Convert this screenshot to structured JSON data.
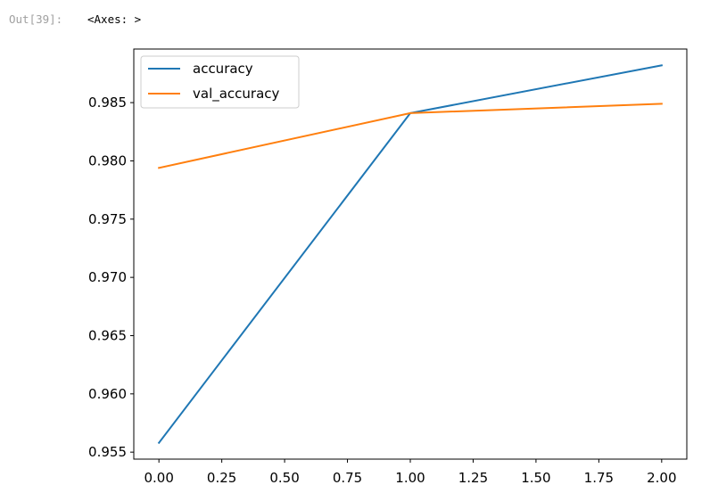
{
  "cell": {
    "prompt": "Out[39]:",
    "output": "<Axes: >"
  },
  "chart_data": {
    "type": "line",
    "x": [
      0,
      1,
      2
    ],
    "series": [
      {
        "name": "accuracy",
        "values": [
          0.9558,
          0.9841,
          0.9882
        ],
        "color": "#1f77b4"
      },
      {
        "name": "val_accuracy",
        "values": [
          0.9794,
          0.9841,
          0.9849
        ],
        "color": "#ff7f0e"
      }
    ],
    "xlim": [
      -0.1,
      2.1
    ],
    "ylim": [
      0.9544,
      0.9896
    ],
    "xticks": [
      {
        "value": 0.0,
        "label": "0.00"
      },
      {
        "value": 0.25,
        "label": "0.25"
      },
      {
        "value": 0.5,
        "label": "0.50"
      },
      {
        "value": 0.75,
        "label": "0.75"
      },
      {
        "value": 1.0,
        "label": "1.00"
      },
      {
        "value": 1.25,
        "label": "1.25"
      },
      {
        "value": 1.5,
        "label": "1.50"
      },
      {
        "value": 1.75,
        "label": "1.75"
      },
      {
        "value": 2.0,
        "label": "2.00"
      }
    ],
    "yticks": [
      {
        "value": 0.955,
        "label": "0.955"
      },
      {
        "value": 0.96,
        "label": "0.960"
      },
      {
        "value": 0.965,
        "label": "0.965"
      },
      {
        "value": 0.97,
        "label": "0.970"
      },
      {
        "value": 0.975,
        "label": "0.975"
      },
      {
        "value": 0.98,
        "label": "0.980"
      },
      {
        "value": 0.985,
        "label": "0.985"
      }
    ],
    "grid": false,
    "legend": "upper-left"
  }
}
